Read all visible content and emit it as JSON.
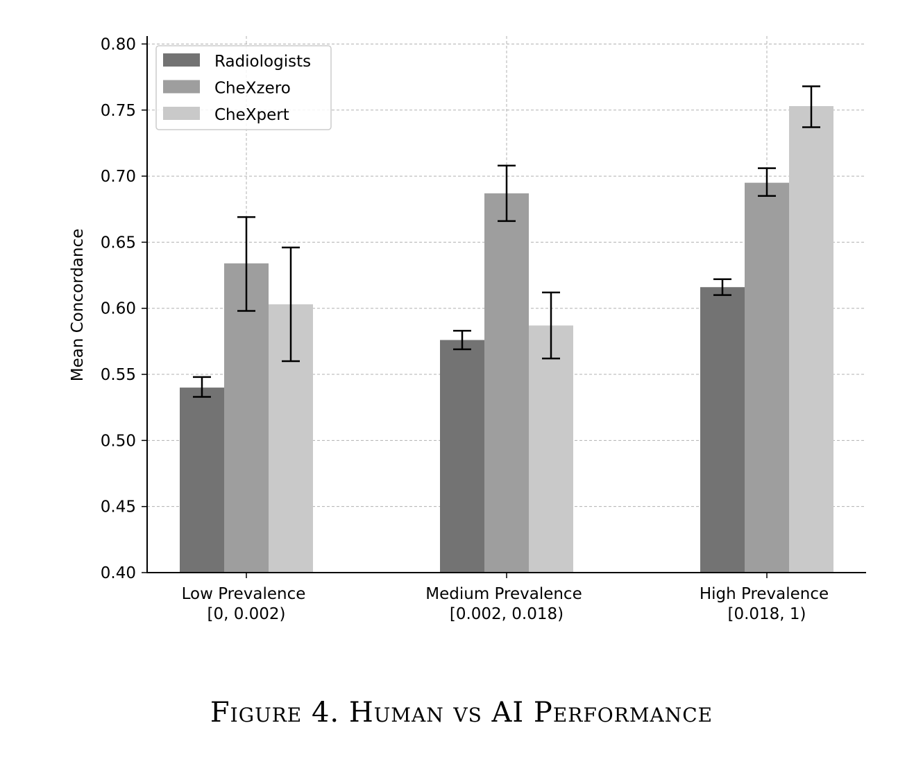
{
  "caption": "Figure 4. Human vs AI Performance",
  "chart_data": {
    "type": "bar",
    "title": "",
    "xlabel": "",
    "ylabel": "Mean Concordance",
    "ylim": [
      0.4,
      0.806
    ],
    "yticks": [
      "0.40",
      "0.45",
      "0.50",
      "0.55",
      "0.60",
      "0.65",
      "0.70",
      "0.75",
      "0.80"
    ],
    "grid": true,
    "legend_position": "top-left",
    "categories": [
      [
        "Low Prevalence",
        "[0, 0.002)"
      ],
      [
        "Medium Prevalence",
        "[0.002, 0.018)"
      ],
      [
        "High Prevalence",
        "[0.018, 1)"
      ]
    ],
    "series": [
      {
        "name": "Radiologists",
        "color": "#737373",
        "values": [
          0.54,
          0.576,
          0.616
        ],
        "err_low": [
          0.533,
          0.569,
          0.61
        ],
        "err_high": [
          0.548,
          0.583,
          0.622
        ]
      },
      {
        "name": "CheXzero",
        "color": "#9e9e9e",
        "values": [
          0.634,
          0.687,
          0.695
        ],
        "err_low": [
          0.598,
          0.666,
          0.685
        ],
        "err_high": [
          0.669,
          0.708,
          0.706
        ]
      },
      {
        "name": "CheXpert",
        "color": "#c9c9c9",
        "values": [
          0.603,
          0.587,
          0.753
        ],
        "err_low": [
          0.56,
          0.562,
          0.737
        ],
        "err_high": [
          0.646,
          0.612,
          0.768
        ]
      }
    ]
  }
}
